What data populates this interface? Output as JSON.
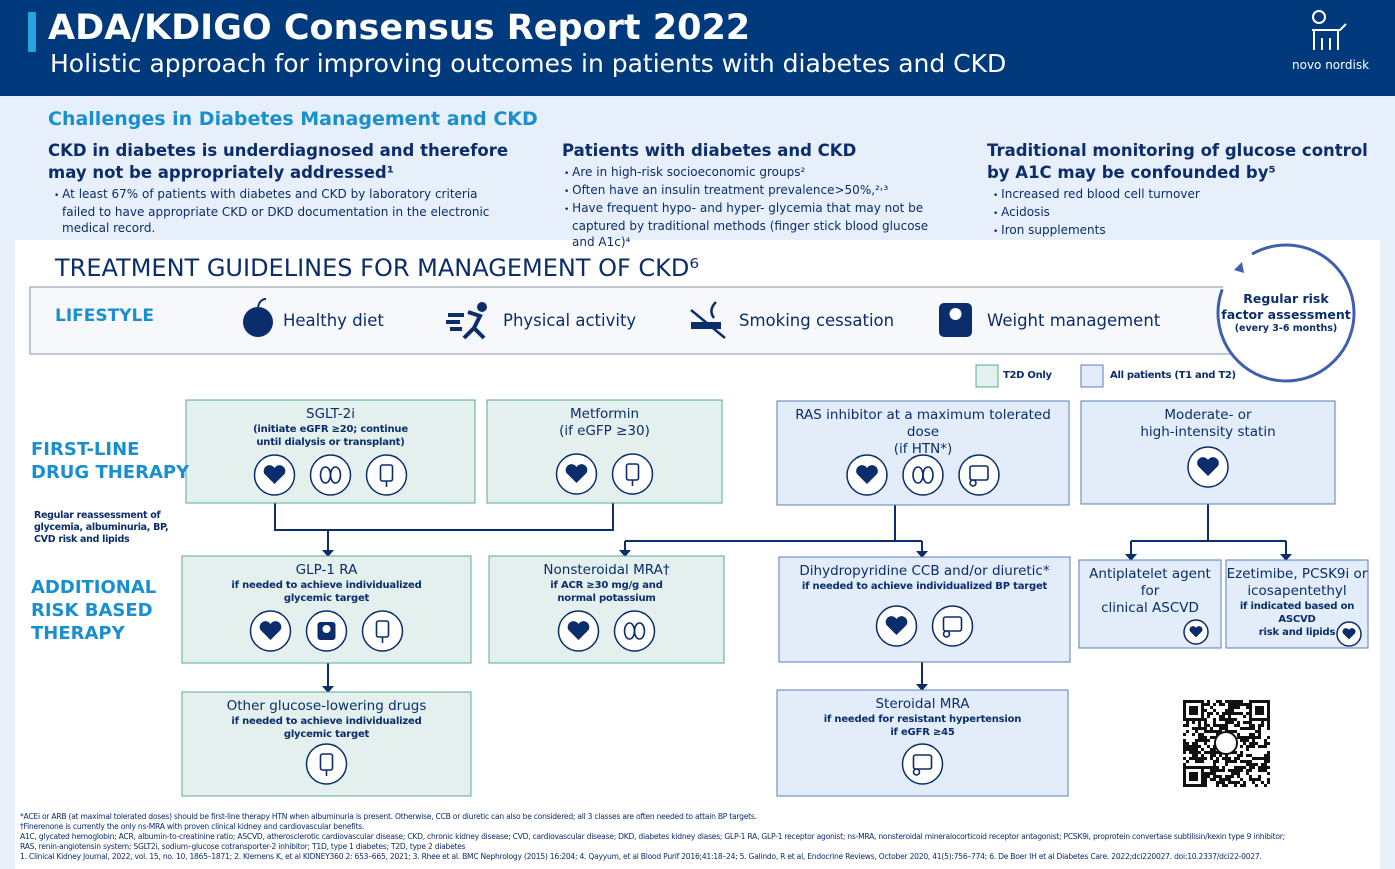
{
  "header": {
    "title": "ADA/KDIGO Consensus Report 2022",
    "subtitle": "Holistic approach for improving outcomes in patients with diabetes and CKD",
    "brand": "novo nordisk"
  },
  "challenges": {
    "heading": "Challenges in Diabetes Management and CKD",
    "columns": [
      {
        "title": [
          "CKD in diabetes is underdiagnosed and therefore",
          "may not be appropriately addressed¹"
        ],
        "bullets": [
          "At least 67% of patients with diabetes and CKD by laboratory criteria failed to have appropriate CKD or DKD documentation in the electronic medical record."
        ]
      },
      {
        "title": [
          "Patients with diabetes and CKD"
        ],
        "bullets": [
          "Are in high-risk socioeconomic groups²",
          "Often have an insulin treatment prevalence>50%,²˒³",
          "Have frequent hypo- and hyper- glycemia that may not be captured by traditional methods (finger stick blood glucose and A1c)⁴"
        ]
      },
      {
        "title": [
          "Traditional monitoring of glucose control",
          "by A1C may be confounded by⁵"
        ],
        "bullets": [
          "Increased red blood cell turnover",
          "Acidosis",
          "Iron supplements"
        ]
      }
    ]
  },
  "treatment": {
    "title": "TREATMENT GUIDELINES FOR MANAGEMENT OF CKD⁶",
    "lifestyle": {
      "label": "LIFESTYLE",
      "items": [
        "Healthy diet",
        "Physical activity",
        "Smoking cessation",
        "Weight management"
      ]
    },
    "risk_assessment": {
      "title": [
        "Regular risk",
        "factor assessment"
      ],
      "note": "(every 3-6 months)"
    },
    "legend": [
      "T2D Only",
      "All patients (T1 and T2)"
    ],
    "rows": [
      [
        "FIRST-LINE",
        "DRUG THERAPY"
      ],
      [
        "ADDITIONAL",
        "RISK BASED",
        "THERAPY"
      ]
    ],
    "reassessment": [
      "Regular reassessment of",
      "glycemia, albuminuria, BP,",
      "CVD risk and lipids"
    ],
    "boxes": [
      {
        "title": [
          "SGLT-2i"
        ],
        "note": [
          "(initiate eGFR ≥20; continue",
          "until dialysis or transplant)"
        ]
      },
      {
        "title": [
          "Metformin",
          "(if eGFP ≥30)"
        ]
      },
      {
        "title": [
          "RAS inhibitor at a maximum tolerated dose",
          "(if HTN*)"
        ]
      },
      {
        "title": [
          "Moderate- or",
          "high-intensity statin"
        ]
      },
      {
        "title": [
          "GLP-1 RA"
        ],
        "note": [
          "if needed to achieve individualized",
          "glycemic target"
        ]
      },
      {
        "title": [
          "Nonsteroidal MRA†"
        ],
        "note": [
          "if ACR ≥30 mg/g and",
          "normal potassium"
        ]
      },
      {
        "title": [
          "Dihydropyridine CCB and/or diuretic*"
        ],
        "note": [
          "if needed to achieve individualized BP target"
        ]
      },
      {
        "title": [
          "Antiplatelet agent",
          "for",
          "clinical ASCVD"
        ]
      },
      {
        "title": [
          "Ezetimibe, PCSK9i or",
          "icosapentethyl"
        ],
        "note": [
          "if indicated based on ASCVD",
          "risk and lipids"
        ]
      },
      {
        "title": [
          "Other glucose-lowering drugs"
        ],
        "note": [
          "if needed to achieve individualized",
          "glycemic target"
        ]
      },
      {
        "title": [
          "Steroidal MRA"
        ],
        "note": [
          "if needed for resistant hypertension",
          "if eGFR ≥45"
        ]
      }
    ]
  },
  "footnotes": [
    "*ACEi or ARB (at maximal tolerated doses) should be first-line therapy HTN when albuminuria is present. Otherwise, CCB or diuretic can also be considered; all 3 classes are often needed to attain BP targets.",
    "†Finerenone is currently the only ns-MRA with proven clinical kidney and cardiovascular benefits.",
    "A1C, glycated hemoglobin; ACR, albumin-to-creatinine ratio; ASCVD, atherosclerotic cardiovascular disease; CKD, chronic kidney disease; CVD, cardiovascular disease; DKD, diabetes kidney diases; GLP-1 RA, GLP-1 receptor agonist; ns-MRA, nonsteroidal mineralocorticoid receptor antagonist; PCSK9i, proprotein convertase subtilisin/kexin type 9 inhibitor;",
    "RAS, renin-angiotensin system; SGLT2i, sodium–glucose cotransporter-2 inhibitor; T1D, type 1 diabetes; T2D, type 2 diabetes",
    "1. Clinical Kidney Journal, 2022, vol. 15, no. 10, 1865–1871; 2. Klemens K, et al KIDNEY360 2: 653–665, 2021; 3. Rhee et al. BMC Nephrology (2015) 16:204; 4. Qayyum, et al Blood Purif 2016;41:18–24; 5. Galindo, R et al, Endocrine Reviews, October 2020, 41(5):756–774; 6. De Boer IH et al Diabetes Care. 2022;dci220027. doi:10.2337/dci22-0027."
  ]
}
